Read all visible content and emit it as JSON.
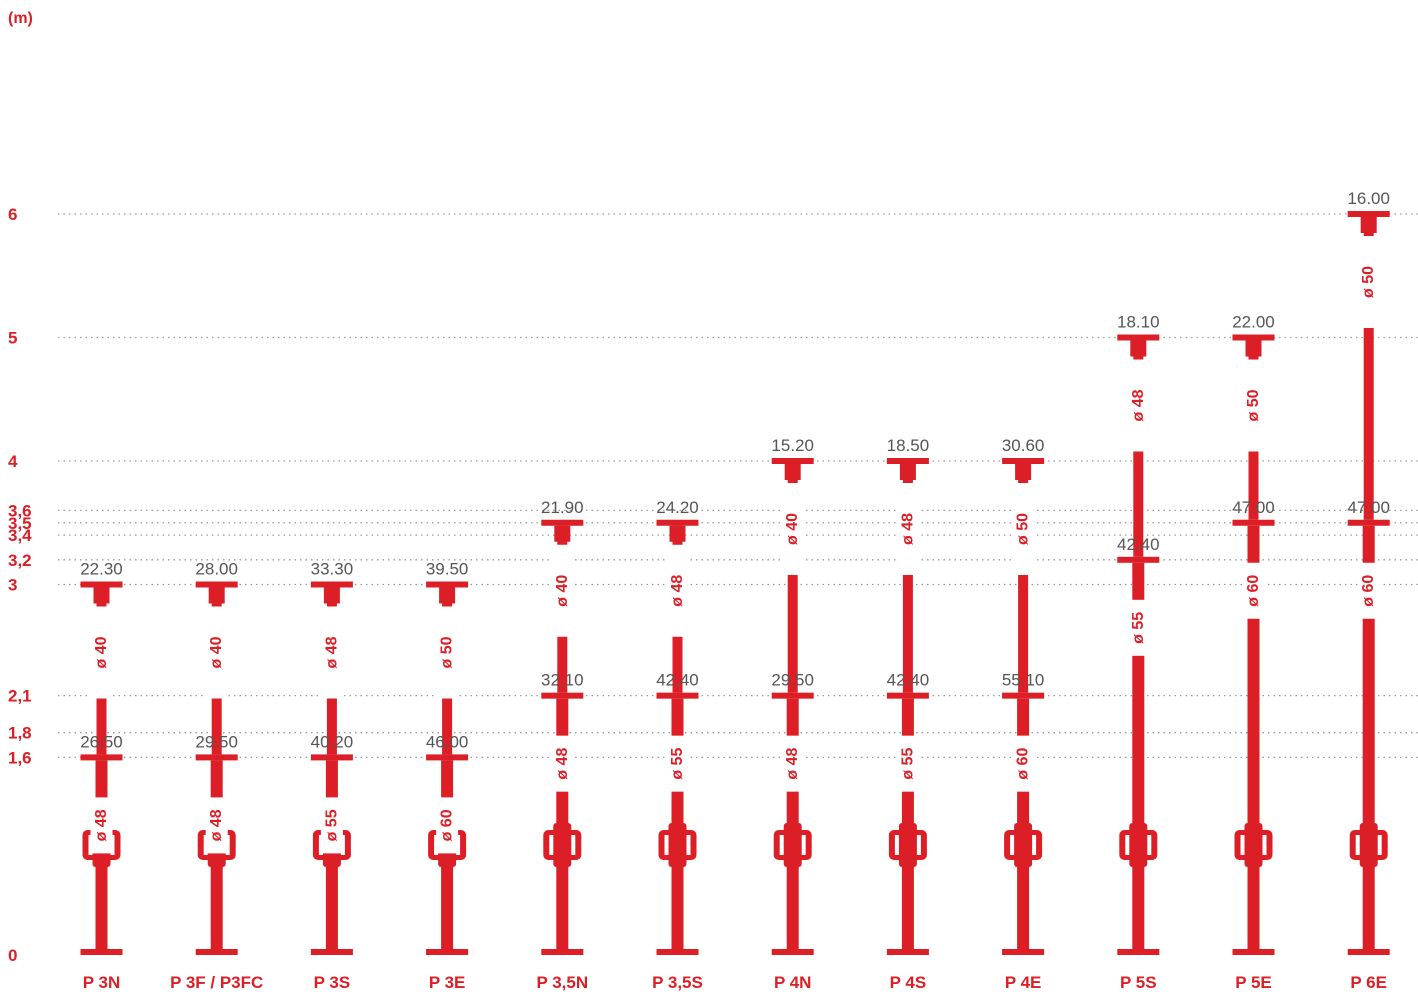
{
  "unit_label": "(m)",
  "colors": {
    "red": "#dc1f26",
    "grid": "#9a9a9a",
    "value_text": "#555555"
  },
  "y_axis": {
    "ticks": [
      {
        "value": 0,
        "label": "0"
      },
      {
        "value": 1.6,
        "label": "1,6"
      },
      {
        "value": 1.8,
        "label": "1,8"
      },
      {
        "value": 2.1,
        "label": "2,1"
      },
      {
        "value": 3,
        "label": "3"
      },
      {
        "value": 3.2,
        "label": "3,2"
      },
      {
        "value": 3.4,
        "label": "3,4"
      },
      {
        "value": 3.5,
        "label": "3,5"
      },
      {
        "value": 3.6,
        "label": "3,6"
      },
      {
        "value": 4,
        "label": "4"
      },
      {
        "value": 5,
        "label": "5"
      },
      {
        "value": 6,
        "label": "6"
      }
    ]
  },
  "props": [
    {
      "name": "P 3N",
      "min_h": 1.6,
      "max_h": 3,
      "min_label": "26.50",
      "max_label": "22.30",
      "outer_dia": "ø 48",
      "inner_dia": "ø 40"
    },
    {
      "name": "P 3F / P3FC",
      "min_h": 1.6,
      "max_h": 3,
      "min_label": "29.50",
      "max_label": "28.00",
      "outer_dia": "ø 48",
      "inner_dia": "ø 40"
    },
    {
      "name": "P 3S",
      "min_h": 1.6,
      "max_h": 3,
      "min_label": "40.20",
      "max_label": "33.30",
      "outer_dia": "ø 55",
      "inner_dia": "ø 48"
    },
    {
      "name": "P 3E",
      "min_h": 1.6,
      "max_h": 3,
      "min_label": "46.00",
      "max_label": "39.50",
      "outer_dia": "ø 60",
      "inner_dia": "ø 50"
    },
    {
      "name": "P 3,5N",
      "min_h": 2.1,
      "max_h": 3.5,
      "min_label": "32.10",
      "max_label": "21.90",
      "outer_dia": "ø 48",
      "inner_dia": "ø 40"
    },
    {
      "name": "P 3,5S",
      "min_h": 2.1,
      "max_h": 3.5,
      "min_label": "42.40",
      "max_label": "24.20",
      "outer_dia": "ø 55",
      "inner_dia": "ø 48"
    },
    {
      "name": "P 4N",
      "min_h": 2.1,
      "max_h": 4,
      "min_label": "29.50",
      "max_label": "15.20",
      "outer_dia": "ø 48",
      "inner_dia": "ø 40"
    },
    {
      "name": "P 4S",
      "min_h": 2.1,
      "max_h": 4,
      "min_label": "42.40",
      "max_label": "18.50",
      "outer_dia": "ø 55",
      "inner_dia": "ø 48"
    },
    {
      "name": "P 4E",
      "min_h": 2.1,
      "max_h": 4,
      "min_label": "55.10",
      "max_label": "30.60",
      "outer_dia": "ø 60",
      "inner_dia": "ø 50"
    },
    {
      "name": "P 5S",
      "min_h": 3.2,
      "max_h": 5,
      "min_label": "42.40",
      "max_label": "18.10",
      "outer_dia": "ø 55",
      "inner_dia": "ø 48"
    },
    {
      "name": "P 5E",
      "min_h": 3.5,
      "max_h": 5,
      "min_label": "47.00",
      "max_label": "22.00",
      "outer_dia": "ø 60",
      "inner_dia": "ø 50"
    },
    {
      "name": "P 6E",
      "min_h": 3.5,
      "max_h": 6,
      "min_label": "47.00",
      "max_label": "16.00",
      "outer_dia": "ø 60",
      "inner_dia": "ø 50"
    }
  ]
}
